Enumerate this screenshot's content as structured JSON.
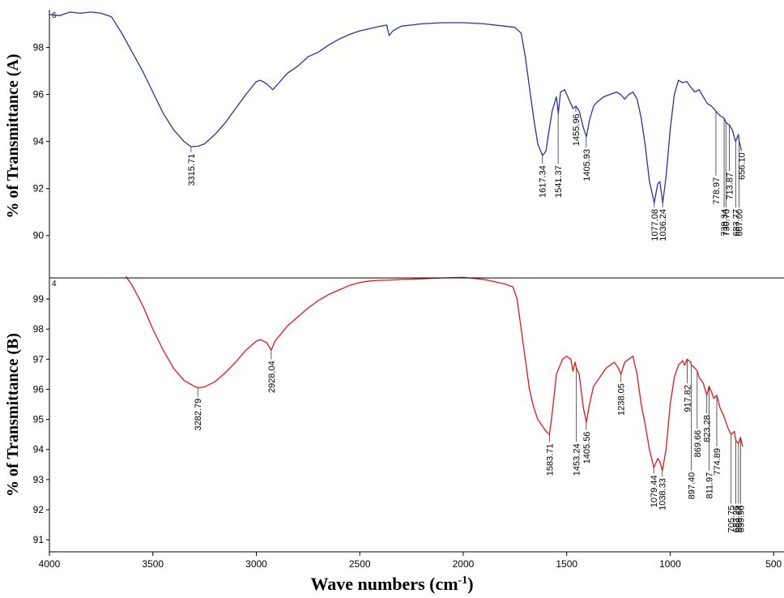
{
  "chart_data": {
    "type": "line",
    "xlabel": "Wave numbers (cm",
    "xlabel_sup": "-1",
    "xlabel_close": ")",
    "xlim": [
      4000,
      450
    ],
    "xticks": [
      4000,
      3500,
      3000,
      2500,
      2000,
      1500,
      1000,
      500
    ],
    "panels": [
      {
        "name": "A",
        "ylabel": "% of  Transmittance (A)",
        "ylim": [
          88.2,
          99.6
        ],
        "yticks": [
          90,
          92,
          94,
          96,
          98
        ],
        "color": "#2a32a0",
        "corner": "6",
        "points": [
          [
            4000,
            99.4
          ],
          [
            3950,
            99.35
          ],
          [
            3900,
            99.5
          ],
          [
            3850,
            99.45
          ],
          [
            3800,
            99.5
          ],
          [
            3750,
            99.45
          ],
          [
            3700,
            99.3
          ],
          [
            3650,
            98.6
          ],
          [
            3600,
            97.8
          ],
          [
            3550,
            97.0
          ],
          [
            3500,
            96.1
          ],
          [
            3450,
            95.2
          ],
          [
            3400,
            94.5
          ],
          [
            3350,
            94.0
          ],
          [
            3315,
            93.78
          ],
          [
            3280,
            93.8
          ],
          [
            3250,
            93.9
          ],
          [
            3200,
            94.3
          ],
          [
            3150,
            94.8
          ],
          [
            3100,
            95.4
          ],
          [
            3050,
            96.0
          ],
          [
            3000,
            96.55
          ],
          [
            2980,
            96.6
          ],
          [
            2950,
            96.45
          ],
          [
            2920,
            96.2
          ],
          [
            2890,
            96.5
          ],
          [
            2850,
            96.9
          ],
          [
            2800,
            97.2
          ],
          [
            2750,
            97.6
          ],
          [
            2700,
            97.8
          ],
          [
            2650,
            98.1
          ],
          [
            2600,
            98.35
          ],
          [
            2550,
            98.55
          ],
          [
            2500,
            98.7
          ],
          [
            2450,
            98.8
          ],
          [
            2400,
            98.9
          ],
          [
            2370,
            98.95
          ],
          [
            2358,
            98.5
          ],
          [
            2340,
            98.7
          ],
          [
            2300,
            98.9
          ],
          [
            2250,
            98.95
          ],
          [
            2200,
            99.0
          ],
          [
            2100,
            99.05
          ],
          [
            2000,
            99.05
          ],
          [
            1900,
            99.0
          ],
          [
            1800,
            98.9
          ],
          [
            1750,
            98.85
          ],
          [
            1720,
            98.6
          ],
          [
            1700,
            97.6
          ],
          [
            1680,
            96.3
          ],
          [
            1660,
            95.0
          ],
          [
            1640,
            93.9
          ],
          [
            1617,
            93.4
          ],
          [
            1600,
            93.6
          ],
          [
            1590,
            94.2
          ],
          [
            1570,
            95.3
          ],
          [
            1550,
            95.9
          ],
          [
            1541,
            95.2
          ],
          [
            1530,
            96.1
          ],
          [
            1510,
            96.2
          ],
          [
            1490,
            95.8
          ],
          [
            1470,
            95.4
          ],
          [
            1455,
            95.5
          ],
          [
            1440,
            95.3
          ],
          [
            1420,
            94.6
          ],
          [
            1405,
            94.2
          ],
          [
            1390,
            94.9
          ],
          [
            1370,
            95.5
          ],
          [
            1350,
            95.7
          ],
          [
            1320,
            95.9
          ],
          [
            1290,
            96.0
          ],
          [
            1260,
            96.1
          ],
          [
            1240,
            96.0
          ],
          [
            1220,
            95.8
          ],
          [
            1200,
            96.0
          ],
          [
            1180,
            96.1
          ],
          [
            1160,
            95.8
          ],
          [
            1140,
            95.0
          ],
          [
            1120,
            93.8
          ],
          [
            1100,
            92.3
          ],
          [
            1077,
            91.4
          ],
          [
            1060,
            92.2
          ],
          [
            1050,
            92.3
          ],
          [
            1036,
            91.4
          ],
          [
            1020,
            92.5
          ],
          [
            1000,
            94.5
          ],
          [
            980,
            96.0
          ],
          [
            960,
            96.6
          ],
          [
            940,
            96.5
          ],
          [
            920,
            96.55
          ],
          [
            900,
            96.3
          ],
          [
            880,
            96.1
          ],
          [
            860,
            96.2
          ],
          [
            840,
            95.9
          ],
          [
            820,
            95.6
          ],
          [
            800,
            95.5
          ],
          [
            780,
            95.3
          ],
          [
            760,
            95.1
          ],
          [
            740,
            95.0
          ],
          [
            730,
            94.8
          ],
          [
            714,
            94.7
          ],
          [
            700,
            94.5
          ],
          [
            684,
            94.0
          ],
          [
            670,
            94.3
          ],
          [
            667,
            94.0
          ],
          [
            660,
            93.8
          ],
          [
            656,
            93.6
          ]
        ]
      },
      {
        "name": "B",
        "ylabel": "% of  Transmittance (B)",
        "ylim": [
          90.6,
          99.7
        ],
        "yticks": [
          91,
          92,
          93,
          94,
          95,
          96,
          97,
          98,
          99
        ],
        "color": "#e8131b",
        "corner": "4",
        "points": [
          [
            3630,
            99.75
          ],
          [
            3600,
            99.45
          ],
          [
            3550,
            98.8
          ],
          [
            3500,
            98.0
          ],
          [
            3450,
            97.3
          ],
          [
            3400,
            96.7
          ],
          [
            3350,
            96.3
          ],
          [
            3300,
            96.1
          ],
          [
            3282,
            96.05
          ],
          [
            3250,
            96.08
          ],
          [
            3200,
            96.25
          ],
          [
            3150,
            96.55
          ],
          [
            3100,
            96.9
          ],
          [
            3050,
            97.3
          ],
          [
            3000,
            97.6
          ],
          [
            2980,
            97.65
          ],
          [
            2950,
            97.55
          ],
          [
            2928,
            97.3
          ],
          [
            2910,
            97.6
          ],
          [
            2880,
            97.85
          ],
          [
            2850,
            98.1
          ],
          [
            2800,
            98.4
          ],
          [
            2750,
            98.7
          ],
          [
            2700,
            98.95
          ],
          [
            2650,
            99.15
          ],
          [
            2600,
            99.3
          ],
          [
            2550,
            99.45
          ],
          [
            2500,
            99.55
          ],
          [
            2450,
            99.6
          ],
          [
            2400,
            99.62
          ],
          [
            2350,
            99.63
          ],
          [
            2300,
            99.65
          ],
          [
            2200,
            99.67
          ],
          [
            2100,
            99.7
          ],
          [
            2000,
            99.72
          ],
          [
            1900,
            99.65
          ],
          [
            1800,
            99.5
          ],
          [
            1760,
            99.4
          ],
          [
            1740,
            99.0
          ],
          [
            1720,
            98.0
          ],
          [
            1700,
            97.0
          ],
          [
            1680,
            96.0
          ],
          [
            1660,
            95.4
          ],
          [
            1640,
            95.0
          ],
          [
            1620,
            94.8
          ],
          [
            1600,
            94.6
          ],
          [
            1583,
            94.5
          ],
          [
            1570,
            95.2
          ],
          [
            1550,
            96.5
          ],
          [
            1520,
            97.0
          ],
          [
            1500,
            97.1
          ],
          [
            1480,
            97.0
          ],
          [
            1470,
            96.6
          ],
          [
            1460,
            96.9
          ],
          [
            1453,
            96.7
          ],
          [
            1440,
            96.5
          ],
          [
            1420,
            95.4
          ],
          [
            1405,
            94.9
          ],
          [
            1390,
            95.5
          ],
          [
            1370,
            96.1
          ],
          [
            1340,
            96.4
          ],
          [
            1310,
            96.7
          ],
          [
            1290,
            96.8
          ],
          [
            1270,
            96.9
          ],
          [
            1250,
            96.7
          ],
          [
            1238,
            96.5
          ],
          [
            1220,
            96.9
          ],
          [
            1200,
            97.0
          ],
          [
            1180,
            97.1
          ],
          [
            1160,
            96.5
          ],
          [
            1140,
            95.5
          ],
          [
            1120,
            94.8
          ],
          [
            1100,
            94.0
          ],
          [
            1079,
            93.4
          ],
          [
            1060,
            93.7
          ],
          [
            1050,
            93.6
          ],
          [
            1038,
            93.3
          ],
          [
            1020,
            94.0
          ],
          [
            1000,
            95.5
          ],
          [
            980,
            96.4
          ],
          [
            960,
            96.8
          ],
          [
            940,
            96.95
          ],
          [
            930,
            96.8
          ],
          [
            918,
            97.0
          ],
          [
            900,
            96.9
          ],
          [
            897,
            96.8
          ],
          [
            880,
            96.7
          ],
          [
            869,
            96.6
          ],
          [
            860,
            96.4
          ],
          [
            840,
            96.2
          ],
          [
            823,
            95.8
          ],
          [
            812,
            96.1
          ],
          [
            800,
            95.9
          ],
          [
            790,
            95.7
          ],
          [
            775,
            95.8
          ],
          [
            760,
            95.4
          ],
          [
            740,
            95.1
          ],
          [
            720,
            94.7
          ],
          [
            706,
            94.5
          ],
          [
            690,
            94.6
          ],
          [
            683,
            94.3
          ],
          [
            670,
            94.2
          ],
          [
            660,
            94.4
          ],
          [
            650,
            94.1
          ]
        ]
      }
    ],
    "annotations": [
      {
        "panel": 0,
        "label": "3315.71",
        "x": 3315.71,
        "y": 93.78,
        "line_end": 93.55
      },
      {
        "panel": 0,
        "label": "1617.34",
        "x": 1617.34,
        "y": 93.4,
        "line_end": 93.05
      },
      {
        "panel": 0,
        "label": "1541.37",
        "x": 1541.37,
        "y": 95.2,
        "line_end": 93.05
      },
      {
        "panel": 0,
        "label": "1455.96",
        "x": 1455.96,
        "y": 95.5,
        "line_end": 95.25
      },
      {
        "panel": 0,
        "label": "1405.93",
        "x": 1405.93,
        "y": 94.2,
        "line_end": 93.75
      },
      {
        "panel": 0,
        "label": "1077.08",
        "x": 1077.08,
        "y": 91.4,
        "line_end": 91.2
      },
      {
        "panel": 0,
        "label": "1036.24",
        "x": 1036.24,
        "y": 91.4,
        "line_end": 91.2
      },
      {
        "panel": 0,
        "label": "778.97",
        "x": 778.97,
        "y": 95.3,
        "line_end": 92.55
      },
      {
        "panel": 0,
        "label": "739.34",
        "x": 739.34,
        "y": 95.0,
        "line_end": 91.2
      },
      {
        "panel": 0,
        "label": "713.87",
        "x": 713.87,
        "y": 94.7,
        "line_end": 92.75
      },
      {
        "panel": 0,
        "label": "730.70",
        "x": 730.7,
        "y": 94.8,
        "line_end": 91.2
      },
      {
        "panel": 0,
        "label": "683.77",
        "x": 683.77,
        "y": 94.0,
        "line_end": 91.2
      },
      {
        "panel": 0,
        "label": "667.00",
        "x": 667.0,
        "y": 94.0,
        "line_end": 91.2
      },
      {
        "panel": 0,
        "label": "656.10",
        "x": 656.1,
        "y": 93.6,
        "line_end": 93.6
      },
      {
        "panel": 1,
        "label": "3282.79",
        "x": 3282.79,
        "y": 96.05,
        "line_end": 95.75
      },
      {
        "panel": 1,
        "label": "2928.04",
        "x": 2928.04,
        "y": 97.3,
        "line_end": 97.0
      },
      {
        "panel": 1,
        "label": "1583.71",
        "x": 1583.71,
        "y": 94.5,
        "line_end": 94.25
      },
      {
        "panel": 1,
        "label": "1453.24",
        "x": 1453.24,
        "y": 96.7,
        "line_end": 94.25
      },
      {
        "panel": 1,
        "label": "1405.56",
        "x": 1405.56,
        "y": 94.9,
        "line_end": 94.65
      },
      {
        "panel": 1,
        "label": "1238.05",
        "x": 1238.05,
        "y": 96.5,
        "line_end": 96.25
      },
      {
        "panel": 1,
        "label": "1079.44",
        "x": 1079.44,
        "y": 93.4,
        "line_end": 93.2
      },
      {
        "panel": 1,
        "label": "1038.33",
        "x": 1038.33,
        "y": 93.3,
        "line_end": 93.1
      },
      {
        "panel": 1,
        "label": "917.82",
        "x": 917.82,
        "y": 97.0,
        "line_end": 96.2
      },
      {
        "panel": 1,
        "label": "897.40",
        "x": 897.4,
        "y": 96.8,
        "line_end": 93.3
      },
      {
        "panel": 1,
        "label": "869.66",
        "x": 869.66,
        "y": 96.6,
        "line_end": 94.7
      },
      {
        "panel": 1,
        "label": "823.28",
        "x": 823.28,
        "y": 95.8,
        "line_end": 95.2
      },
      {
        "panel": 1,
        "label": "811.97",
        "x": 811.97,
        "y": 96.1,
        "line_end": 93.3
      },
      {
        "panel": 1,
        "label": "774.89",
        "x": 774.89,
        "y": 95.8,
        "line_end": 94.1
      },
      {
        "panel": 1,
        "label": "705.75",
        "x": 705.75,
        "y": 94.5,
        "line_end": 92.2
      },
      {
        "panel": 1,
        "label": "683.26",
        "x": 683.26,
        "y": 94.3,
        "line_end": 92.2
      },
      {
        "panel": 1,
        "label": "669.74",
        "x": 669.74,
        "y": 94.2,
        "line_end": 92.2
      },
      {
        "panel": 1,
        "label": "659.96",
        "x": 659.96,
        "y": 94.4,
        "line_end": 92.2
      }
    ]
  }
}
